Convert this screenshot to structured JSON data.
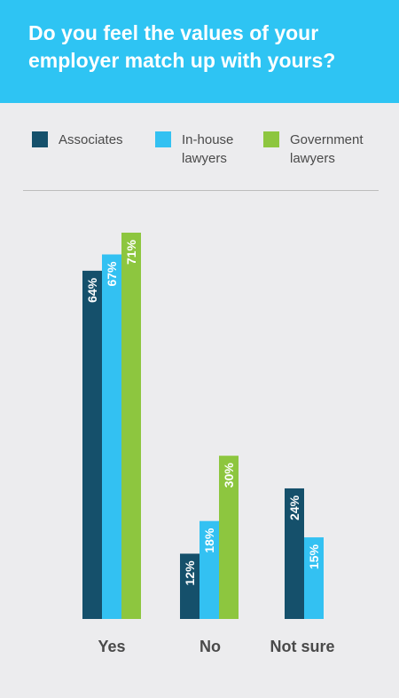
{
  "header": {
    "title": "Do you feel the values of your employer match up with yours?"
  },
  "colors": {
    "header_bg": "#2ec4f3",
    "panel_bg": "#ececee",
    "associates": "#15506b",
    "inhouse": "#33c1f2",
    "government": "#8dc63f"
  },
  "chart_data": {
    "type": "bar",
    "title": "Do you feel the values of your employer match up with yours?",
    "categories": [
      "Yes",
      "No",
      "Not sure"
    ],
    "series": [
      {
        "name": "Associates",
        "values": [
          64,
          12,
          24
        ],
        "labels": [
          "64%",
          "12%",
          "24%"
        ],
        "color": "#15506b"
      },
      {
        "name": "In-house lawyers",
        "values": [
          67,
          18,
          15
        ],
        "labels": [
          "67%",
          "18%",
          "15%"
        ],
        "color": "#33c1f2"
      },
      {
        "name": "Government lawyers",
        "values": [
          71,
          30,
          null
        ],
        "labels": [
          "71%",
          "30%",
          ""
        ],
        "color": "#8dc63f"
      }
    ],
    "ylim": [
      0,
      71
    ],
    "grid": false,
    "legend": "top"
  }
}
